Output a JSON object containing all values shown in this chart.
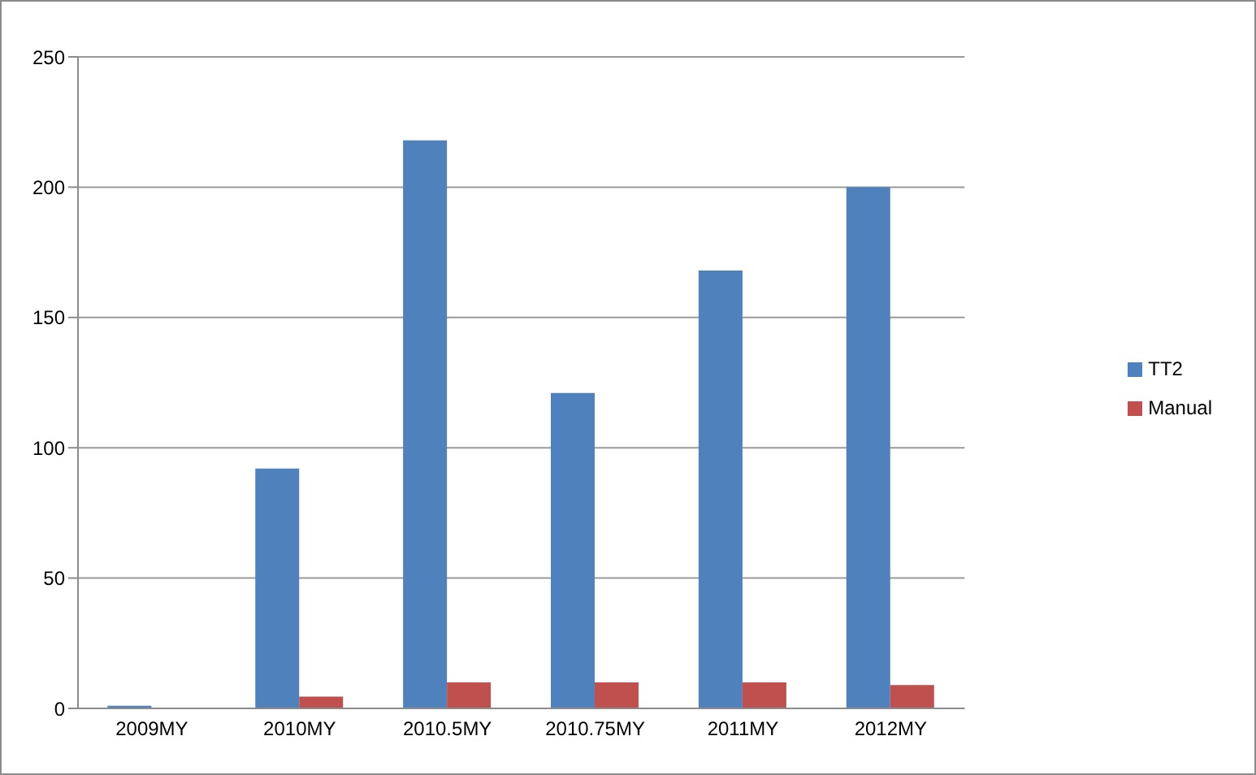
{
  "chart_data": {
    "type": "bar",
    "categories": [
      "2009MY",
      "2010MY",
      "2010.5MY",
      "2010.75MY",
      "2011MY",
      "2012MY"
    ],
    "series": [
      {
        "name": "TT2",
        "color": "#4f81bd",
        "values": [
          1,
          92,
          218,
          121,
          168,
          200
        ]
      },
      {
        "name": "Manual",
        "color": "#c0504d",
        "values": [
          0,
          4.5,
          10,
          10,
          10,
          9
        ]
      }
    ],
    "ylim": [
      0,
      250
    ],
    "yticks": [
      0,
      50,
      100,
      150,
      200,
      250
    ],
    "grid": "y",
    "legend": "right"
  }
}
